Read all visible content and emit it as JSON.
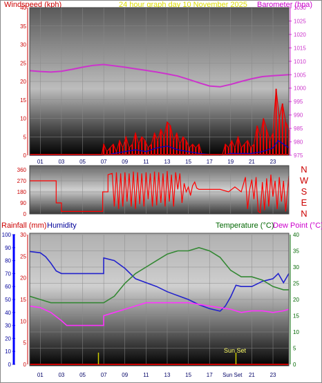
{
  "header": {
    "left_title": "Windspeed (kph)",
    "center_title": "24 hour graph day   10 November 2025",
    "right_title": "Barometer (hpa)"
  },
  "colors": {
    "wind": "#e00000",
    "gust": "#ff0000",
    "wind_avg": "#0000cc",
    "wind_green": "#00aa00",
    "barometer": "#cc33cc",
    "direction": "#ff0000",
    "rain": "#cc0000",
    "humidity": "#2222cc",
    "temperature": "#338833",
    "dewpoint": "#ff33ff",
    "sun": "#cccc00",
    "left_axis_text": "#cc0000",
    "humidity_axis_text": "#000099",
    "temp_axis_text": "#006600"
  },
  "chart_data": [
    {
      "type": "line",
      "id": "wind_baro",
      "ylabel": "Windspeed (kph)",
      "y2label": "Barometer (hpa)",
      "ylim": [
        0,
        40
      ],
      "y2lim": [
        975,
        1030
      ],
      "y_ticks": [
        "0",
        "5",
        "10",
        "15",
        "20",
        "25",
        "30",
        "35",
        "40"
      ],
      "y2_ticks": [
        "975",
        "980",
        "985",
        "990",
        "995",
        "1000",
        "1005",
        "1010",
        "1015",
        "1020",
        "1025",
        "1030"
      ],
      "x_ticks": [
        "01",
        "03",
        "05",
        "07",
        "09",
        "11",
        "13",
        "15",
        "17",
        "19",
        "21",
        "23"
      ],
      "xlim": [
        0,
        24.5
      ],
      "series": [
        {
          "key": "barometer",
          "axis": "y2",
          "x": [
            0,
            1,
            2,
            3,
            4,
            5,
            6,
            7,
            8,
            9,
            10,
            11,
            12,
            13,
            14,
            15,
            16,
            17,
            18,
            19,
            20,
            21,
            22,
            23,
            24.5
          ],
          "values": [
            1006.5,
            1006.2,
            1006.0,
            1006.3,
            1007.0,
            1007.8,
            1008.5,
            1008.8,
            1008.3,
            1007.8,
            1007.2,
            1006.6,
            1006.0,
            1005.3,
            1004.5,
            1003.3,
            1002.0,
            1000.8,
            1000.5,
            1001.4,
            1002.5,
            1003.5,
            1004.3,
            1004.6,
            1005.0
          ]
        },
        {
          "key": "wind",
          "axis": "y",
          "x": [
            0,
            6.8,
            7.0,
            7.3,
            7.6,
            7.9,
            8.2,
            8.5,
            8.8,
            9.1,
            9.4,
            9.7,
            10.0,
            10.3,
            10.6,
            10.9,
            11.2,
            11.5,
            11.8,
            12.1,
            12.4,
            12.7,
            13.0,
            13.3,
            13.6,
            13.9,
            14.2,
            14.5,
            14.8,
            15.1,
            15.4,
            15.7,
            16.0,
            16.3,
            18.2,
            18.5,
            18.8,
            19.1,
            19.4,
            19.7,
            20.0,
            20.3,
            20.6,
            20.9,
            21.2,
            21.5,
            21.8,
            22.1,
            22.4,
            22.7,
            23.0,
            23.3,
            23.6,
            23.9,
            24.2,
            24.5
          ],
          "values": [
            0,
            0,
            3,
            1,
            2,
            3,
            1,
            4,
            2,
            5,
            2,
            3,
            6,
            3,
            5,
            4,
            2,
            3,
            6,
            4,
            7,
            5,
            9,
            8,
            4,
            6,
            3,
            5,
            4,
            2,
            3,
            2,
            3,
            0,
            0,
            3,
            2,
            4,
            2,
            5,
            2,
            3,
            4,
            2,
            3,
            8,
            5,
            10,
            7,
            4,
            6,
            18,
            10,
            14,
            9,
            7
          ]
        },
        {
          "key": "wind_avg",
          "axis": "y",
          "x": [
            0,
            7,
            8,
            9,
            10,
            11,
            12,
            13,
            14,
            15,
            16,
            18,
            19,
            20,
            21,
            22,
            23,
            23.5,
            24,
            24.5
          ],
          "values": [
            0,
            0,
            0.5,
            1,
            1.5,
            1,
            2,
            2.5,
            1.5,
            1,
            0.5,
            0,
            0.5,
            0.5,
            0.5,
            1,
            2,
            4,
            3,
            2
          ]
        }
      ]
    },
    {
      "type": "line",
      "id": "direction",
      "ylim": [
        0,
        360
      ],
      "y_ticks": [
        "0",
        "90",
        "180",
        "270",
        "360"
      ],
      "y_ticks_shown": [
        "0",
        "90",
        "180",
        "270",
        "360"
      ],
      "compass": [
        "N",
        "W",
        "S",
        "E",
        "N"
      ],
      "xlim": [
        0,
        24.5
      ],
      "series": [
        {
          "key": "direction",
          "x": [
            0,
            2.5,
            2.5,
            3.0,
            3.0,
            6.9,
            6.9,
            7.4,
            7.4,
            7.8,
            8.0,
            8.2,
            8.4,
            8.6,
            8.8,
            9.0,
            9.2,
            9.4,
            9.6,
            9.8,
            10.0,
            10.2,
            10.4,
            10.6,
            10.8,
            11.0,
            11.2,
            11.4,
            11.6,
            11.8,
            12.0,
            12.2,
            12.4,
            12.6,
            12.8,
            13.0,
            13.2,
            13.4,
            13.6,
            13.8,
            14.0,
            14.2,
            14.4,
            14.6,
            14.8,
            15.0,
            15.2,
            15.4,
            15.6,
            15.8,
            16.0,
            17.0,
            18.0,
            18.8,
            19.4,
            20.0,
            20.4,
            20.6,
            20.8,
            21.0,
            21.2,
            21.4,
            21.6,
            21.8,
            22.0,
            22.2,
            22.4,
            22.6,
            22.8,
            23.0,
            23.2,
            23.4,
            23.6,
            23.8,
            24.0,
            24.2,
            24.5
          ],
          "values": [
            270,
            270,
            90,
            90,
            20,
            20,
            180,
            180,
            320,
            330,
            60,
            340,
            40,
            330,
            60,
            340,
            100,
            330,
            60,
            345,
            40,
            340,
            80,
            330,
            60,
            340,
            120,
            330,
            60,
            345,
            70,
            340,
            90,
            330,
            60,
            350,
            100,
            320,
            60,
            340,
            200,
            330,
            90,
            250,
            180,
            220,
            150,
            230,
            260,
            210,
            200,
            200,
            200,
            180,
            220,
            180,
            300,
            40,
            200,
            280,
            120,
            300,
            20,
            10,
            260,
            30,
            290,
            60,
            320,
            140,
            270,
            40,
            300,
            100,
            270,
            20,
            310
          ]
        }
      ]
    },
    {
      "type": "line",
      "id": "rain_humidity_temp",
      "y_left_rain_label": "Rainfall (mm)",
      "y_left_hum_label": "Humidity",
      "y_right_temp_label": "Temperature (°C)",
      "y_right_dew_label": "Dew Point (°C)",
      "humidity_lim": [
        0,
        100
      ],
      "rain_lim": [
        0,
        30
      ],
      "temp_lim": [
        0,
        40
      ],
      "humidity_ticks": [
        "0",
        "10",
        "20",
        "30",
        "40",
        "50",
        "60",
        "70",
        "80",
        "90",
        "100"
      ],
      "rain_ticks": [
        "0",
        "5",
        "10",
        "15",
        "20",
        "25",
        "30"
      ],
      "temp_ticks": [
        "0",
        "5",
        "10",
        "15",
        "20",
        "25",
        "30",
        "35",
        "40"
      ],
      "x_ticks": [
        "01",
        "03",
        "05",
        "07",
        "09",
        "11",
        "13",
        "15",
        "17",
        "Sun",
        "Set",
        "21",
        "23"
      ],
      "xlim": [
        0,
        24.5
      ],
      "sun_label": "Sun Set",
      "sun_rise_x": 6.5,
      "sun_set_x": 19.5,
      "series": [
        {
          "key": "humidity",
          "axis": "humidity",
          "x": [
            0,
            1,
            1.5,
            2,
            2.5,
            3,
            4,
            5,
            6,
            6.99,
            7,
            8,
            9,
            10,
            11,
            12,
            13,
            14,
            15,
            16,
            17,
            18,
            18.5,
            19,
            19.5,
            20,
            21,
            22,
            23,
            23.5,
            24,
            24.5
          ],
          "values": [
            87,
            86,
            83,
            78,
            72,
            70,
            70,
            70,
            70,
            70,
            82,
            80,
            74,
            66,
            63,
            60,
            56,
            53,
            50,
            46,
            43,
            41,
            45,
            52,
            61,
            60,
            60,
            64,
            66,
            70,
            63,
            70
          ]
        },
        {
          "key": "temperature",
          "axis": "temp",
          "x": [
            0,
            1,
            2,
            3,
            4,
            5,
            6,
            7,
            8,
            9,
            10,
            11,
            12,
            13,
            14,
            15,
            16,
            17,
            18,
            19,
            20,
            21,
            22,
            23,
            24,
            24.5
          ],
          "values": [
            21,
            20,
            19,
            19,
            19,
            19,
            19,
            19,
            21,
            25,
            28,
            30,
            32,
            34,
            35,
            35,
            36,
            35,
            33,
            29,
            27,
            27,
            26,
            24,
            23,
            23
          ]
        },
        {
          "key": "dewpoint",
          "axis": "temp",
          "x": [
            0,
            1,
            2,
            3,
            3.5,
            5,
            6,
            6.99,
            7,
            8,
            9,
            10,
            11,
            12,
            13,
            14,
            15,
            16,
            17,
            18,
            19,
            20,
            21,
            22,
            23,
            24,
            24.5
          ],
          "values": [
            18,
            17.5,
            16,
            13.5,
            12,
            12,
            12,
            12,
            15,
            16,
            17,
            18,
            19,
            19,
            19,
            19,
            19,
            18.5,
            18,
            17.5,
            17,
            16,
            16.5,
            16.5,
            16,
            16.5,
            17
          ]
        },
        {
          "key": "rain",
          "axis": "rain",
          "x": [
            0,
            24.5
          ],
          "values": [
            0,
            0
          ]
        }
      ]
    }
  ]
}
